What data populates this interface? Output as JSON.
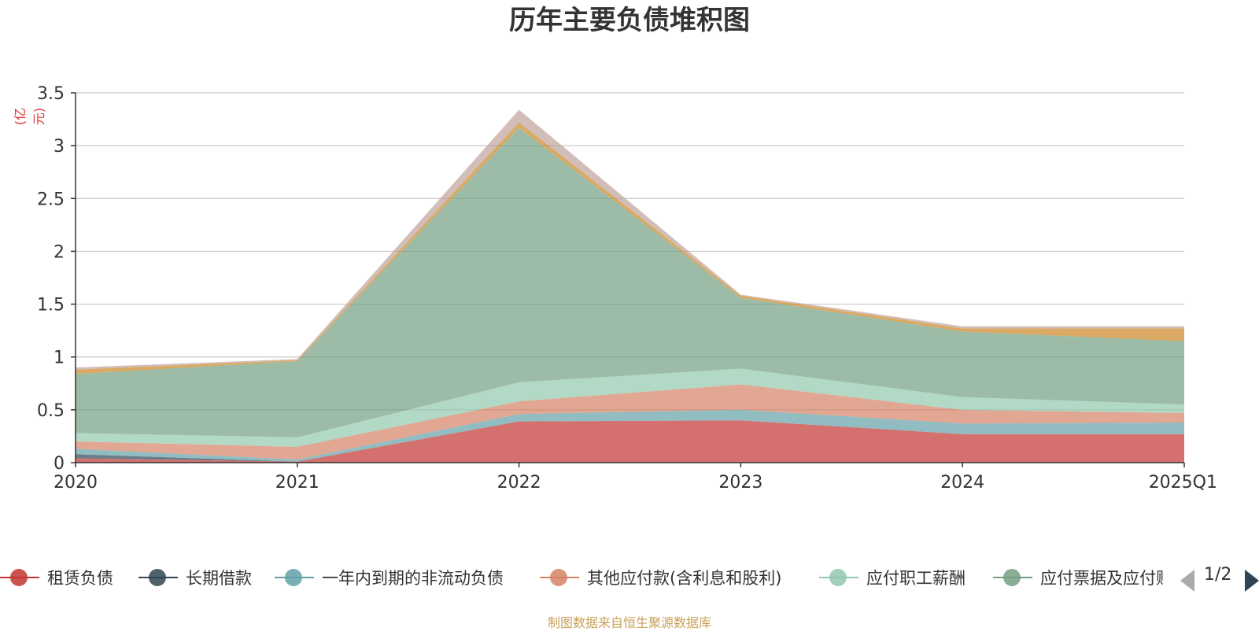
{
  "chart_data": {
    "type": "area",
    "title": "历年主要负债堆积图",
    "y_unit": "(亿元)",
    "x": [
      "2020",
      "2021",
      "2022",
      "2023",
      "2024",
      "2025Q1"
    ],
    "y_ticks": [
      "0",
      "0.5",
      "1",
      "1.5",
      "2",
      "2.5",
      "3",
      "3.5"
    ],
    "ylim": [
      0,
      3.5
    ],
    "stacked": true,
    "grid": true,
    "series": [
      {
        "name": "租赁负债",
        "color": "#c23531",
        "values": [
          0.04,
          0.01,
          0.39,
          0.4,
          0.27,
          0.27
        ]
      },
      {
        "name": "长期借款",
        "color": "#2f4554",
        "values": [
          0.04,
          0.0,
          0.0,
          0.0,
          0.0,
          0.0
        ]
      },
      {
        "name": "一年内到期的非流动负债",
        "color": "#61a0a8",
        "values": [
          0.05,
          0.02,
          0.07,
          0.1,
          0.1,
          0.11
        ]
      },
      {
        "name": "其他应付款(含利息和股利)",
        "color": "#d48265",
        "values": [
          0.07,
          0.12,
          0.12,
          0.24,
          0.13,
          0.09
        ]
      },
      {
        "name": "应付职工薪酬",
        "color": "#91c7ae",
        "values": [
          0.08,
          0.09,
          0.18,
          0.15,
          0.12,
          0.08
        ]
      },
      {
        "name": "应付票据及应付账款",
        "color": "#749f83",
        "values": [
          0.56,
          0.72,
          2.41,
          0.67,
          0.62,
          0.6
        ]
      },
      {
        "name": "",
        "color": "#ca8622",
        "values": [
          0.04,
          0.01,
          0.05,
          0.02,
          0.03,
          0.12
        ]
      },
      {
        "name": "",
        "color": "#bda29a",
        "values": [
          0.02,
          0.01,
          0.12,
          0.01,
          0.02,
          0.02
        ]
      }
    ]
  },
  "legend": {
    "items": [
      {
        "label": "租赁负债",
        "color": "#c23531"
      },
      {
        "label": "长期借款",
        "color": "#2f4554"
      },
      {
        "label": "一年内到期的非流动负债",
        "color": "#61a0a8"
      },
      {
        "label": "其他应付款(含利息和股利)",
        "color": "#d48265"
      },
      {
        "label": "应付职工薪酬",
        "color": "#91c7ae"
      },
      {
        "label": "应付票据及应付账款",
        "color": "#749f83"
      }
    ],
    "page_indicator": "1/2"
  },
  "source_note": "制图数据来自恒生聚源数据库"
}
